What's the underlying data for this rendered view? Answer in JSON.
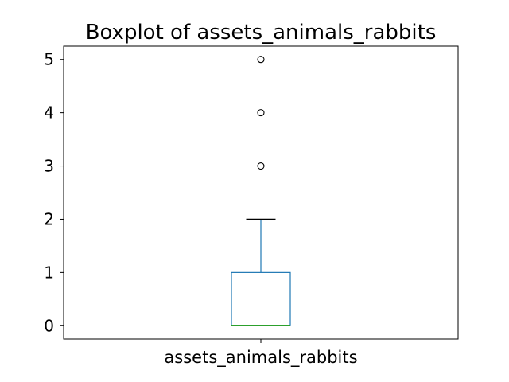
{
  "chart_data": {
    "type": "box",
    "title": "Boxplot of assets_animals_rabbits",
    "categories": [
      "assets_animals_rabbits"
    ],
    "ylim": [
      -0.25,
      5.25
    ],
    "yticks": [
      0,
      1,
      2,
      3,
      4,
      5
    ],
    "grid": false,
    "legend": "none",
    "series": [
      {
        "min": 0,
        "q1": 0,
        "median": 0,
        "q3": 1,
        "whisker_low": 0,
        "whisker_high": 2,
        "outliers": [
          3,
          4,
          5
        ]
      }
    ],
    "colors": {
      "box": "#1f77b4",
      "median": "#2ca02c",
      "whisker": "#1f77b4",
      "cap": "#000000",
      "outlier_edge": "#000000"
    }
  }
}
